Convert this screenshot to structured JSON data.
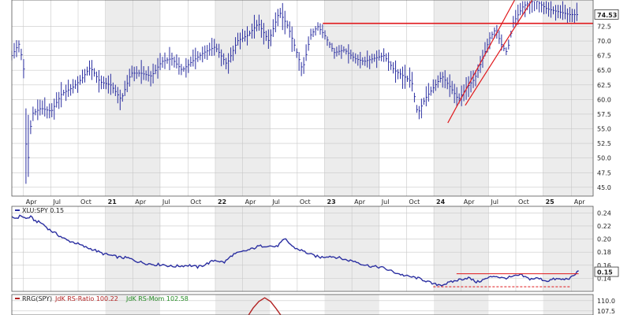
{
  "chart_data": [
    {
      "type": "ohlc",
      "name": "price",
      "ylim": [
        43.5,
        77
      ],
      "y_ticks": [
        "45.0",
        "47.5",
        "50.0",
        "52.5",
        "55.0",
        "57.5",
        "60.0",
        "62.5",
        "65.0",
        "67.5",
        "70.0",
        "72.5"
      ],
      "last_value": "74.53",
      "x_time": [
        0,
        100
      ],
      "x_tick_labels": [
        "Apr",
        "Jul",
        "Oct",
        "21",
        "Apr",
        "Jul",
        "Oct",
        "22",
        "Apr",
        "Jul",
        "Oct",
        "23",
        "Apr",
        "Jul",
        "Oct",
        "24",
        "Apr",
        "Jul",
        "Oct",
        "25",
        "Apr"
      ],
      "x_tick_positions": [
        2.0,
        6.7,
        11.4,
        16.1,
        20.8,
        25.5,
        30.3,
        35.0,
        39.7,
        44.4,
        49.1,
        53.8,
        58.5,
        63.2,
        67.9,
        72.6,
        77.3,
        82.0,
        86.7,
        91.4,
        96.3
      ],
      "close_series": {
        "t": [
          0,
          1.2,
          2.0,
          2.6,
          3.4,
          5.0,
          6.8,
          8.6,
          10.4,
          12.0,
          13.5,
          15.2,
          17.0,
          18.8,
          20.5,
          22.2,
          24.0,
          25.8,
          27.5,
          29.3,
          31.0,
          33.0,
          35.0,
          37.0,
          38.8,
          40.6,
          42.4,
          44.2,
          46.0,
          47.5,
          48.7,
          50.0,
          51.4,
          52.6,
          53.8,
          55.5,
          57.2,
          59.0,
          60.6,
          62.2,
          64.0,
          65.8,
          67.4,
          68.8,
          69.8,
          71.0,
          72.5,
          74.0,
          75.5,
          76.8,
          78.2,
          79.6,
          81.0,
          82.2,
          83.2,
          84.4,
          85.2,
          86.2,
          88.0,
          90.0,
          92.0,
          94.0,
          96.0,
          97.2
        ],
        "close": [
          67.5,
          69.5,
          66.0,
          47.0,
          57.5,
          58.5,
          58.0,
          61.0,
          62.0,
          63.5,
          65.5,
          63.0,
          62.5,
          60.0,
          64.5,
          64.5,
          64.0,
          66.5,
          67.0,
          65.0,
          66.5,
          68.0,
          69.0,
          66.0,
          70.0,
          71.0,
          73.0,
          70.0,
          75.0,
          72.5,
          69.0,
          65.0,
          71.0,
          72.5,
          71.0,
          68.0,
          68.5,
          67.0,
          66.5,
          67.0,
          67.5,
          65.0,
          64.0,
          63.0,
          57.5,
          60.0,
          62.0,
          64.0,
          62.0,
          60.0,
          62.0,
          63.5,
          67.0,
          70.5,
          72.0,
          69.0,
          68.0,
          73.0,
          76.0,
          77.0,
          75.5,
          75.0,
          74.5,
          74.5
        ]
      },
      "annotations": [
        {
          "kind": "horizontal-line",
          "y": 73.0,
          "t_from": 53.5,
          "t_to": 100,
          "color": "#e0191d"
        },
        {
          "kind": "channel-line",
          "from": [
            75.0,
            56.0
          ],
          "to": [
            86.5,
            77.0
          ],
          "color": "#e0191d"
        },
        {
          "kind": "channel-line",
          "from": [
            78.0,
            59.0
          ],
          "to": [
            89.5,
            77.0
          ],
          "color": "#e0191d"
        }
      ],
      "colors": {
        "bars": "#2b2fa1",
        "annotation": "#e0191d"
      }
    },
    {
      "type": "line",
      "name": "ratio",
      "legend_label": "XLU:SPY 0.15",
      "ylim": [
        0.12,
        0.25
      ],
      "y_ticks": [
        "0.14",
        "0.16",
        "0.18",
        "0.20",
        "0.22",
        "0.24"
      ],
      "last_value": "0.15",
      "series": [
        {
          "name": "XLU:SPY",
          "t": [
            0,
            0.8,
            1.6,
            2.4,
            3.2,
            4.0,
            5.2,
            6.5,
            8.0,
            9.5,
            11.0,
            12.5,
            14.0,
            15.5,
            17.0,
            18.5,
            20.0,
            21.5,
            23.0,
            24.5,
            26.0,
            27.5,
            29.0,
            30.5,
            32.0,
            33.5,
            35.0,
            36.5,
            38.0,
            39.5,
            41.0,
            42.5,
            44.0,
            45.5,
            47.0,
            48.5,
            50.0,
            51.5,
            53.0,
            54.5,
            56.0,
            57.5,
            59.0,
            60.5,
            62.0,
            63.5,
            65.0,
            66.5,
            68.0,
            69.5,
            71.0,
            72.5,
            74.0,
            75.5,
            77.0,
            78.5,
            80.0,
            81.5,
            83.0,
            84.5,
            86.0,
            87.5,
            89.0,
            90.5,
            92.0,
            93.5,
            95.0,
            96.5,
            97.5
          ],
          "values": [
            0.233,
            0.232,
            0.236,
            0.231,
            0.234,
            0.228,
            0.224,
            0.214,
            0.206,
            0.198,
            0.194,
            0.188,
            0.184,
            0.178,
            0.175,
            0.172,
            0.171,
            0.166,
            0.163,
            0.161,
            0.161,
            0.158,
            0.159,
            0.16,
            0.157,
            0.162,
            0.168,
            0.164,
            0.176,
            0.18,
            0.184,
            0.189,
            0.19,
            0.188,
            0.2,
            0.187,
            0.182,
            0.176,
            0.172,
            0.174,
            0.172,
            0.168,
            0.166,
            0.161,
            0.158,
            0.157,
            0.152,
            0.147,
            0.143,
            0.141,
            0.137,
            0.131,
            0.13,
            0.134,
            0.138,
            0.141,
            0.134,
            0.139,
            0.144,
            0.14,
            0.142,
            0.145,
            0.139,
            0.14,
            0.136,
            0.139,
            0.138,
            0.142,
            0.152
          ]
        }
      ],
      "annotations": [
        {
          "kind": "horizontal-line",
          "y": 0.147,
          "t_from": 76.5,
          "t_to": 97.5,
          "style": "solid",
          "color": "#e0191d"
        },
        {
          "kind": "horizontal-line",
          "y": 0.127,
          "t_from": 72.5,
          "t_to": 96.0,
          "style": "dashed",
          "color": "#e0191d"
        }
      ],
      "colors": {
        "line": "#2b2fa1"
      }
    },
    {
      "type": "line",
      "name": "rrg",
      "legend_label": "RRG(SPY)",
      "legend_items": [
        {
          "label": "JdK RS-Ratio 100.22",
          "color": "#b22222"
        },
        {
          "label": "JdK RS-Mom 102.58",
          "color": "#228b22"
        }
      ],
      "ylim": [
        106.5,
        111.5
      ],
      "y_ticks": [
        "107.5",
        "110.0"
      ],
      "series": [
        {
          "name": "JdK RS-Ratio",
          "t": [
            40.5,
            41.5,
            42.5,
            43.5,
            44.5,
            45.5,
            46.5
          ],
          "values": [
            106.0,
            108.2,
            109.8,
            110.7,
            109.8,
            108.0,
            106.0
          ],
          "color": "#b22222"
        }
      ]
    }
  ]
}
